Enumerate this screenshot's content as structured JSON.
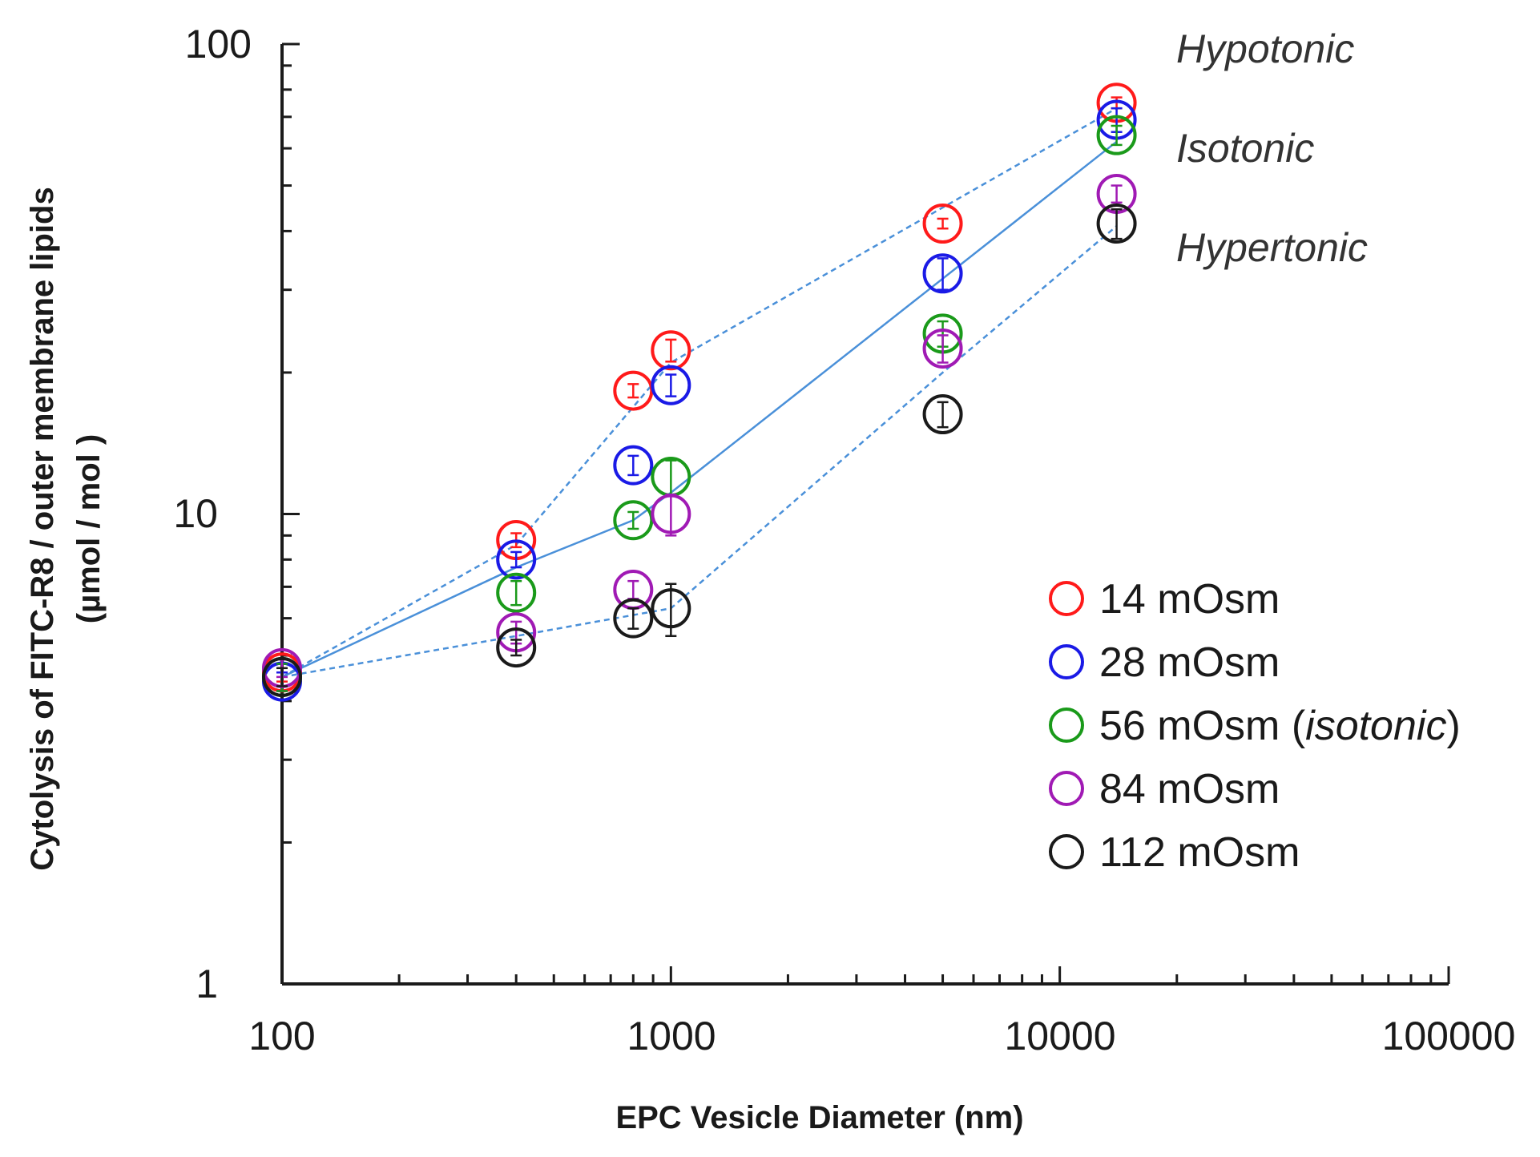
{
  "chart_data": {
    "type": "scatter",
    "title": "",
    "xlabel": "EPC Vesicle Diameter (nm)",
    "ylabel_line1": "Cytolysis of FITC-R8 / outer membrane lipids",
    "ylabel_line2": "(µmol / mol )",
    "xscale": "log",
    "yscale": "log",
    "xlim": [
      100,
      100000
    ],
    "ylim": [
      1,
      100
    ],
    "x_ticks": [
      100,
      1000,
      10000,
      100000
    ],
    "x_tick_labels": [
      "100",
      "1000",
      "10000",
      "100000"
    ],
    "y_ticks": [
      1,
      10,
      100
    ],
    "y_tick_labels": [
      "1",
      "10",
      "100"
    ],
    "series": [
      {
        "name": "14 mOsm",
        "color": "#ff1a1a",
        "points": [
          {
            "x": 100,
            "y": 4.6,
            "err": 0.2
          },
          {
            "x": 400,
            "y": 8.8,
            "err": 0.3
          },
          {
            "x": 800,
            "y": 18.3,
            "err": 0.6
          },
          {
            "x": 1000,
            "y": 22.3,
            "err": 1.2
          },
          {
            "x": 5000,
            "y": 41.5,
            "err": 1.0
          },
          {
            "x": 14000,
            "y": 75.0,
            "err": 2.0
          }
        ]
      },
      {
        "name": "28 mOsm",
        "color": "#1a1ae6",
        "points": [
          {
            "x": 100,
            "y": 4.4,
            "err": 0.2
          },
          {
            "x": 400,
            "y": 8.0,
            "err": 0.3
          },
          {
            "x": 800,
            "y": 12.7,
            "err": 0.6
          },
          {
            "x": 1000,
            "y": 18.8,
            "err": 1.0
          },
          {
            "x": 5000,
            "y": 32.5,
            "err": 2.5
          },
          {
            "x": 14000,
            "y": 69.0,
            "err": 4.0
          }
        ]
      },
      {
        "name": "56 mOsm (isotonic)",
        "color": "#1a9a1a",
        "points": [
          {
            "x": 100,
            "y": 4.5,
            "err": 0.3
          },
          {
            "x": 400,
            "y": 6.8,
            "err": 0.4
          },
          {
            "x": 800,
            "y": 9.7,
            "err": 0.4
          },
          {
            "x": 1000,
            "y": 12.0,
            "err": 1.0
          },
          {
            "x": 5000,
            "y": 24.2,
            "err": 1.5
          },
          {
            "x": 14000,
            "y": 64.0,
            "err": 3.0
          }
        ]
      },
      {
        "name": "84 mOsm",
        "color": "#a01ab4",
        "points": [
          {
            "x": 100,
            "y": 4.7,
            "err": 0.2
          },
          {
            "x": 400,
            "y": 5.6,
            "err": 0.3
          },
          {
            "x": 800,
            "y": 6.9,
            "err": 0.3
          },
          {
            "x": 1000,
            "y": 10.0,
            "err": 1.0
          },
          {
            "x": 5000,
            "y": 22.5,
            "err": 1.5
          },
          {
            "x": 14000,
            "y": 48.0,
            "err": 2.0
          }
        ]
      },
      {
        "name": "112 mOsm",
        "color": "#1a1a1a",
        "points": [
          {
            "x": 100,
            "y": 4.5,
            "err": 0.2
          },
          {
            "x": 400,
            "y": 5.2,
            "err": 0.2
          },
          {
            "x": 800,
            "y": 6.0,
            "err": 0.3
          },
          {
            "x": 1000,
            "y": 6.3,
            "err": 0.8
          },
          {
            "x": 5000,
            "y": 16.3,
            "err": 1.0
          },
          {
            "x": 14000,
            "y": 41.5,
            "err": 3.0
          }
        ]
      }
    ],
    "trend_lines": [
      {
        "name": "Hypotonic",
        "style": "dashed",
        "color": "#4a90d9",
        "points": [
          [
            100,
            4.5
          ],
          [
            400,
            8.6
          ],
          [
            1000,
            21.0
          ],
          [
            14000,
            73.0
          ]
        ]
      },
      {
        "name": "Isotonic",
        "style": "solid",
        "color": "#4a90d9",
        "points": [
          [
            100,
            4.5
          ],
          [
            400,
            7.7
          ],
          [
            800,
            9.7
          ],
          [
            1000,
            11.1
          ],
          [
            14000,
            62.0
          ]
        ]
      },
      {
        "name": "Hypertonic",
        "style": "dashed",
        "color": "#4a90d9",
        "points": [
          [
            100,
            4.5
          ],
          [
            400,
            5.5
          ],
          [
            1000,
            6.3
          ],
          [
            5000,
            20.0
          ],
          [
            14000,
            41.0
          ]
        ]
      }
    ],
    "annotations": [
      "Hypotonic",
      "Isotonic",
      "Hypertonic"
    ],
    "legend": {
      "position": "center-right",
      "entries": [
        "14 mOsm",
        "28 mOsm",
        "56 mOsm (",
        "isotonic",
        ")",
        "84 mOsm",
        "112 mOsm"
      ]
    }
  }
}
